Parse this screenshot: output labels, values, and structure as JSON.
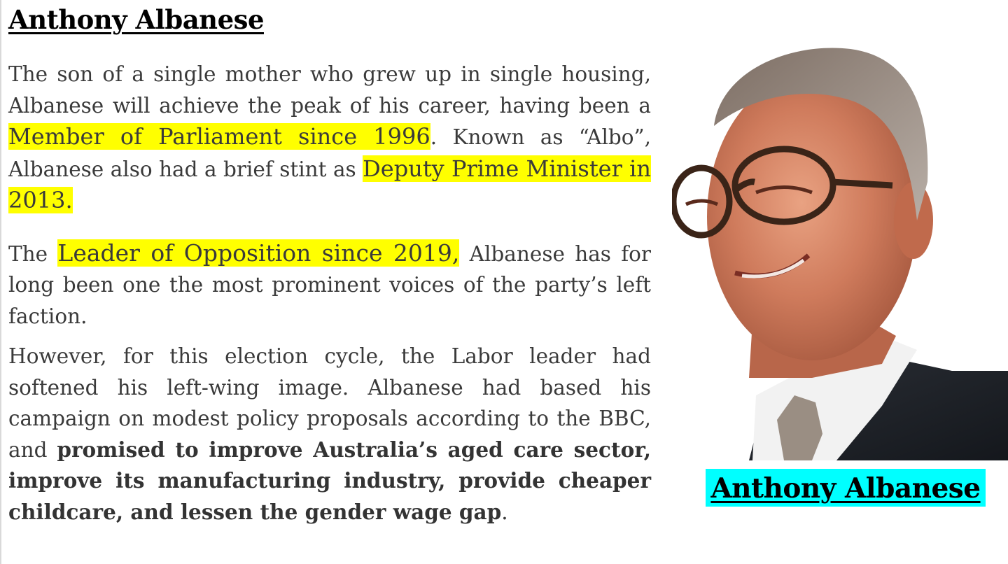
{
  "document": {
    "title": "Anthony Albanese",
    "paragraph1": {
      "t1": "The son of a single mother who grew up in single housing, Albanese will achieve the peak of his career, having been a ",
      "h1": "Member of Parliament since 1996",
      "t2": ". Known as “Albo”, Albanese also had a brief stint as ",
      "h2": "Deputy Prime Minister in 2013."
    },
    "paragraph2": {
      "t1": "The ",
      "h1": "Leader of Opposition since 2019,",
      "t2": " Albanese has for long been one the most prominent voices of the party’s left faction."
    },
    "paragraph3": {
      "t1": "However, for this election cycle, the Labor leader had softened his left-wing image. Albanese had based his campaign on modest policy proposals according to the BBC, and ",
      "b1": "promised to improve Australia’s aged care sector, improve its manufacturing industry, provide cheaper childcare, and lessen the gender wage gap",
      "t2": "."
    },
    "photo_caption": "Anthony Albanese"
  },
  "colors": {
    "highlight_yellow": "#ffff00",
    "highlight_cyan": "#00ffff",
    "body_text": "#3a3a3a"
  }
}
